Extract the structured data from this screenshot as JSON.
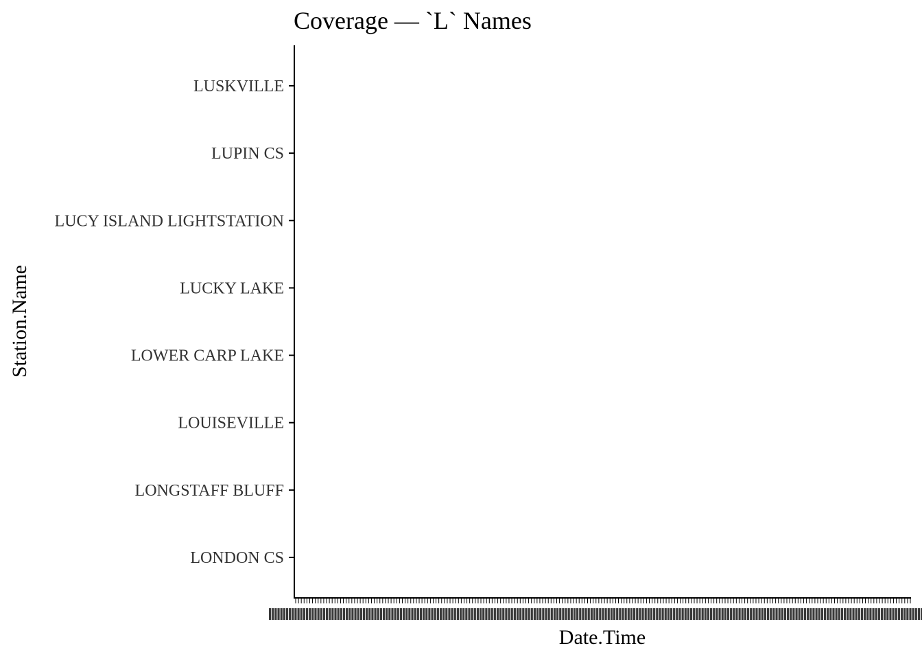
{
  "chart_data": {
    "type": "scatter",
    "title": "Coverage — `L` Names",
    "xlabel": "Date.Time",
    "ylabel": "Station.Name",
    "categories": [
      "LONDON CS",
      "LONGSTAFF BLUFF",
      "LOUISEVILLE",
      "LOWER CARP LAKE",
      "LUCKY LAKE",
      "LUCY ISLAND LIGHTSTATION",
      "LUPIN CS",
      "LUSKVILLE"
    ],
    "series": [],
    "x_tick_labels": "dense, overlapping and illegible",
    "grid": false,
    "legend": "none",
    "colors": {
      "axis": "#000000",
      "text": "#333333",
      "title": "#000000"
    }
  }
}
